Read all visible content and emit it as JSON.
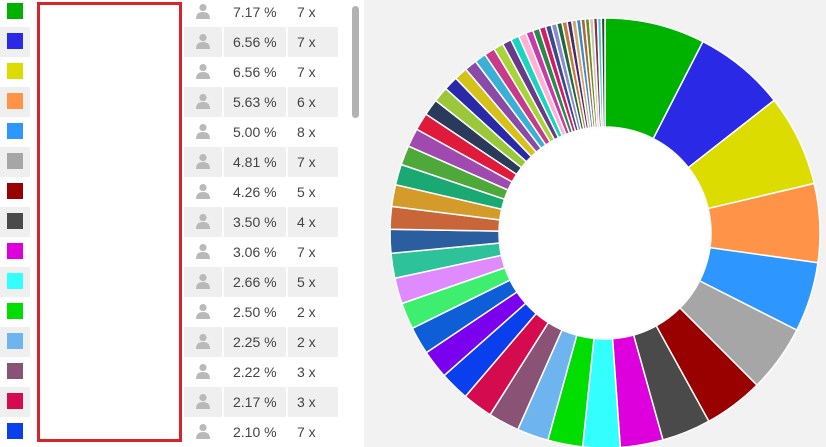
{
  "table": {
    "rows": [
      {
        "color": "#00b200",
        "percent": "7.17 %",
        "count": "7 x"
      },
      {
        "color": "#2a2ae6",
        "percent": "6.56 %",
        "count": "7 x"
      },
      {
        "color": "#dcdc00",
        "percent": "6.56 %",
        "count": "7 x"
      },
      {
        "color": "#ff9448",
        "percent": "5.63 %",
        "count": "6 x"
      },
      {
        "color": "#2d96ff",
        "percent": "5.00 %",
        "count": "8 x"
      },
      {
        "color": "#a6a6a6",
        "percent": "4.81 %",
        "count": "7 x"
      },
      {
        "color": "#990000",
        "percent": "4.26 %",
        "count": "5 x"
      },
      {
        "color": "#4a4a4a",
        "percent": "3.50 %",
        "count": "4 x"
      },
      {
        "color": "#dd00dd",
        "percent": "3.06 %",
        "count": "7 x"
      },
      {
        "color": "#33ffff",
        "percent": "2.66 %",
        "count": "5 x"
      },
      {
        "color": "#00dd00",
        "percent": "2.50 %",
        "count": "2 x"
      },
      {
        "color": "#6eb4ee",
        "percent": "2.25 %",
        "count": "2 x"
      },
      {
        "color": "#8a5274",
        "percent": "2.22 %",
        "count": "3 x"
      },
      {
        "color": "#d40b4e",
        "percent": "2.17 %",
        "count": "3 x"
      },
      {
        "color": "#0a3fee",
        "percent": "2.10 %",
        "count": "7 x"
      }
    ],
    "user_icon": "user-icon"
  },
  "chart_data": {
    "type": "pie",
    "variant": "donut",
    "values": [
      7.17,
      6.56,
      6.56,
      5.63,
      5.0,
      4.81,
      4.26,
      3.5,
      3.06,
      2.66,
      2.5,
      2.25,
      2.22,
      2.17,
      2.1,
      2.05,
      1.98,
      1.9,
      1.85,
      1.78,
      1.7,
      1.62,
      1.55,
      1.48,
      1.4,
      1.32,
      1.25,
      1.18,
      1.1,
      1.02,
      0.95,
      0.88,
      0.82,
      0.76,
      0.7,
      0.65,
      0.6,
      0.56,
      0.52,
      0.48,
      0.45,
      0.42,
      0.4,
      0.38,
      0.36,
      0.34,
      0.33,
      0.32,
      0.31,
      0.3,
      0.29,
      0.28,
      0.27,
      0.26
    ],
    "colors": [
      "#00b200",
      "#2a2ae6",
      "#dcdc00",
      "#ff9448",
      "#2d96ff",
      "#a6a6a6",
      "#990000",
      "#4a4a4a",
      "#dd00dd",
      "#33ffff",
      "#00dd00",
      "#6eb4ee",
      "#8a5274",
      "#d40b4e",
      "#0a3fee",
      "#7a00ee",
      "#0e5ed8",
      "#3eee6e",
      "#e08aff",
      "#2ec29a",
      "#2a5e9e",
      "#c8663a",
      "#d49a2a",
      "#1aa873",
      "#4ea83a",
      "#a04ab0",
      "#e01a3a",
      "#2a3a5a",
      "#9ac83a",
      "#2a2aa8",
      "#d4c21a",
      "#8a4aa8",
      "#3ab0d4",
      "#c83a8a",
      "#a8d43a",
      "#6a3a8a",
      "#1ad4c2",
      "#ffb0d4",
      "#c83aa8",
      "#2a8a4a",
      "#d41a6a",
      "#3a4a8a",
      "#8a8ad4",
      "#1a6a3a",
      "#c87a3a",
      "#4a2a6a",
      "#d4aa6a",
      "#3a8ac8",
      "#a86a3a",
      "#6a8a2a",
      "#c8c8a8",
      "#8a2a4a",
      "#4ac8d4",
      "#2a4a2a"
    ]
  }
}
